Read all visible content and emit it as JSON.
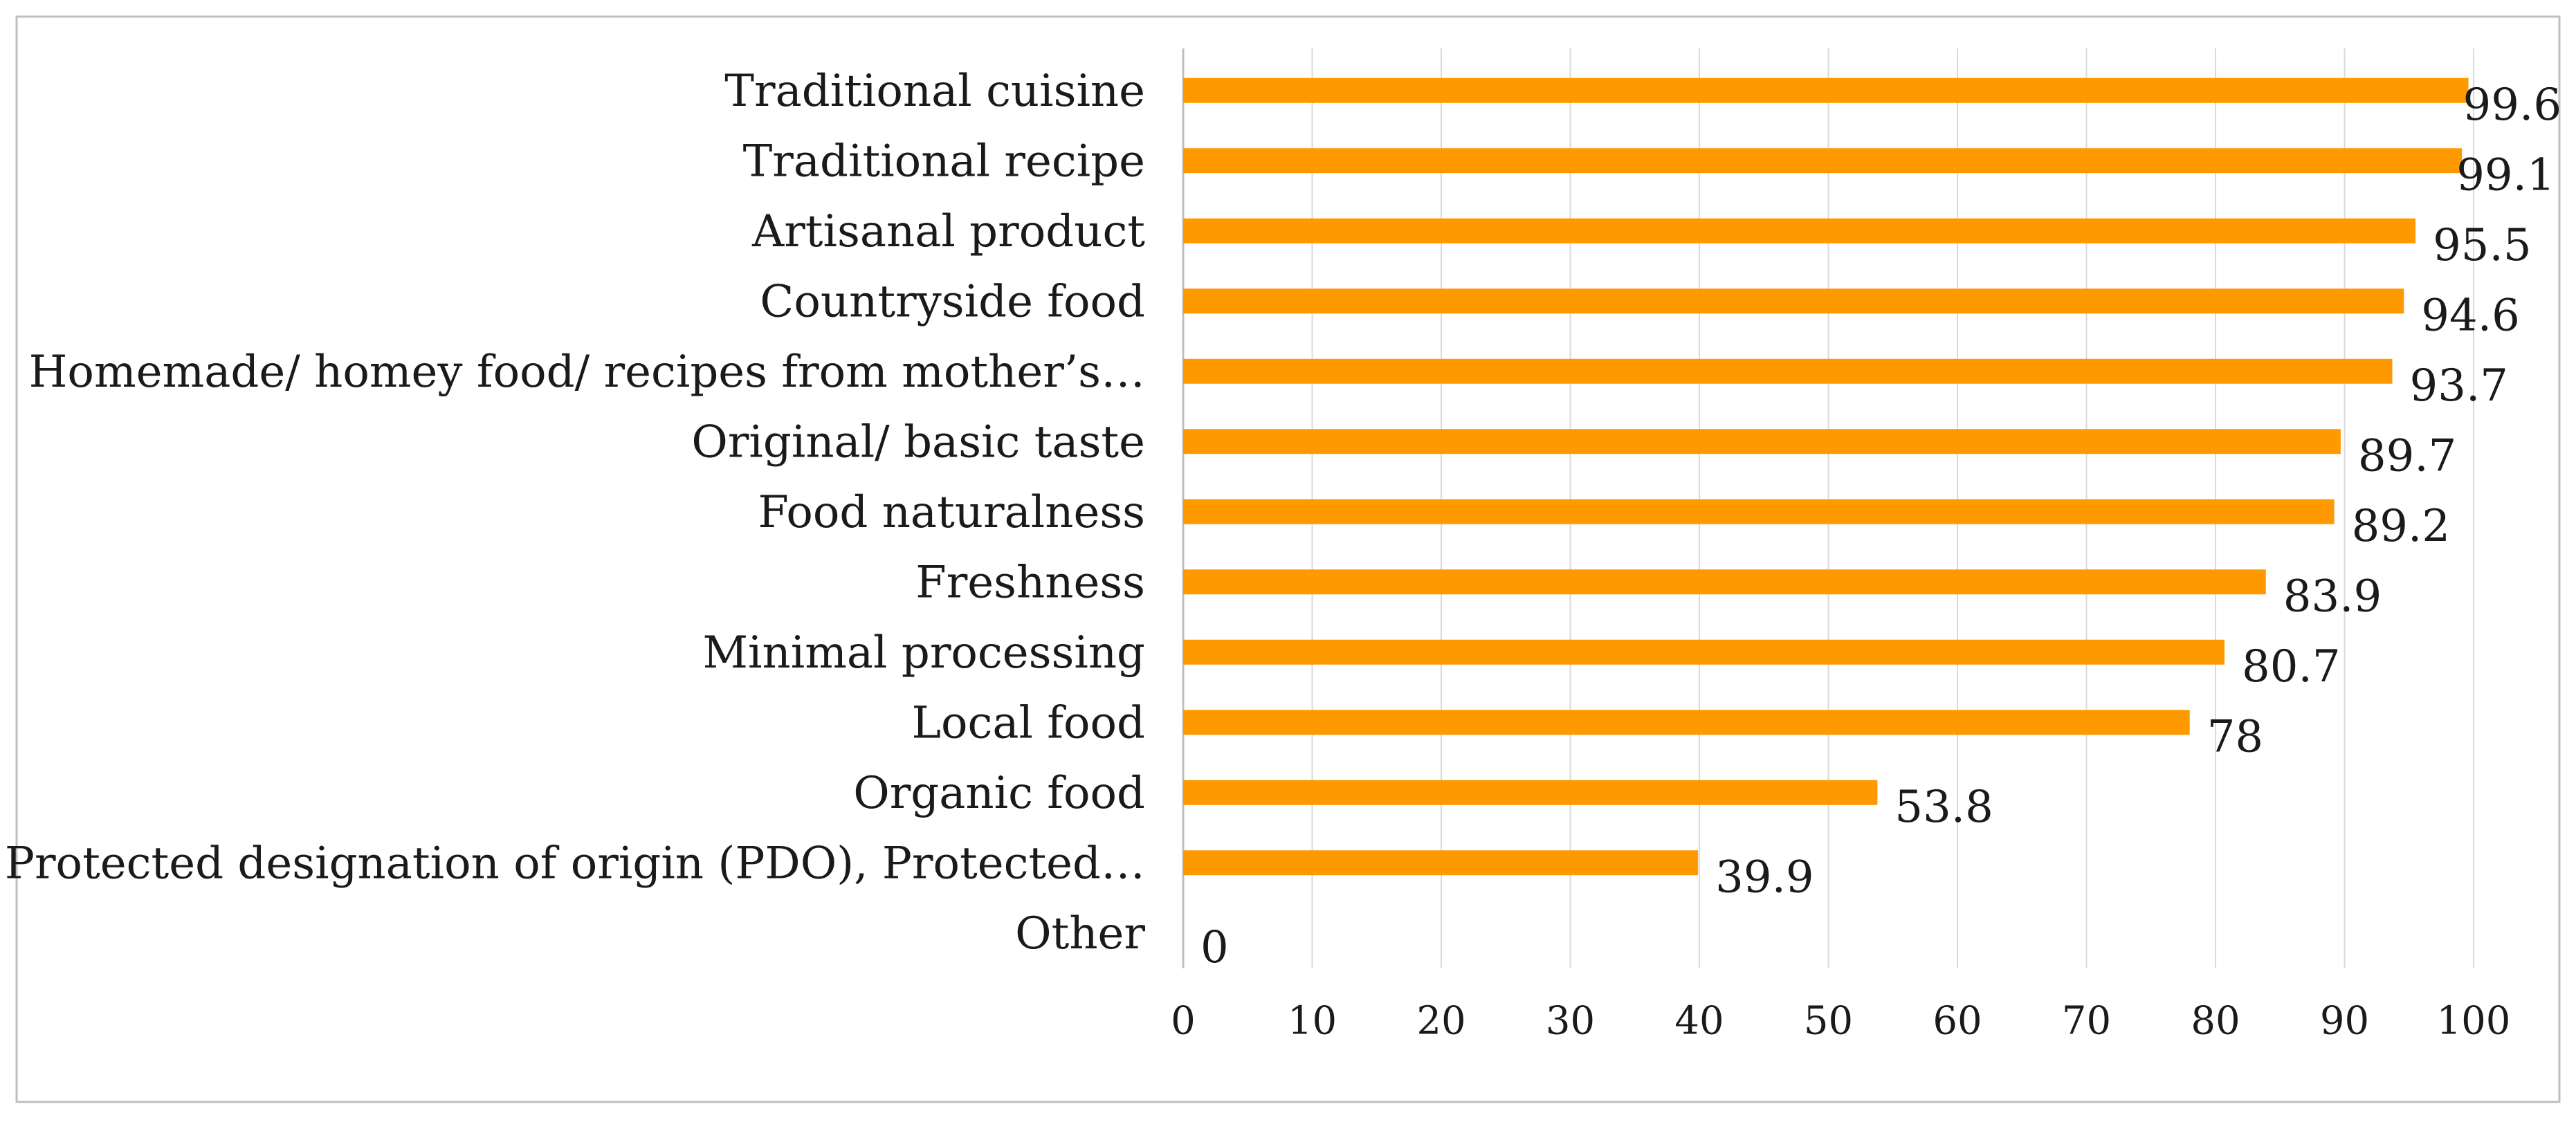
{
  "chart_data": {
    "type": "bar",
    "orientation": "horizontal",
    "title": "",
    "xlabel": "",
    "ylabel": "",
    "categories": [
      "Traditional cuisine",
      "Traditional recipe",
      "Artisanal product",
      "Countryside food",
      "Homemade/ homey food/ recipes from mother’s…",
      "Original/ basic taste",
      "Food naturalness",
      "Freshness",
      "Minimal processing",
      "Local food",
      "Organic food",
      "Protected designation of origin (PDO), Protected…",
      "Other"
    ],
    "values": [
      99.6,
      99.1,
      95.5,
      94.6,
      93.7,
      89.7,
      89.2,
      83.9,
      80.7,
      78,
      53.8,
      39.9,
      0
    ],
    "value_labels": [
      "99.6",
      "99.1",
      "95.5",
      "94.6",
      "93.7",
      "89.7",
      "89.2",
      "83.9",
      "80.7",
      "78",
      "53.8",
      "39.9",
      "0"
    ],
    "xlim": [
      0,
      100
    ],
    "ticks": [
      "0",
      "10",
      "20",
      "30",
      "40",
      "50",
      "60",
      "70",
      "80",
      "90",
      "100"
    ],
    "grid": true,
    "legend": "none",
    "colors": {
      "bar": "#ff9900",
      "grid": "#d9d9d9",
      "frame": "#bfbfbf",
      "axis": "#bfbfbf"
    }
  }
}
